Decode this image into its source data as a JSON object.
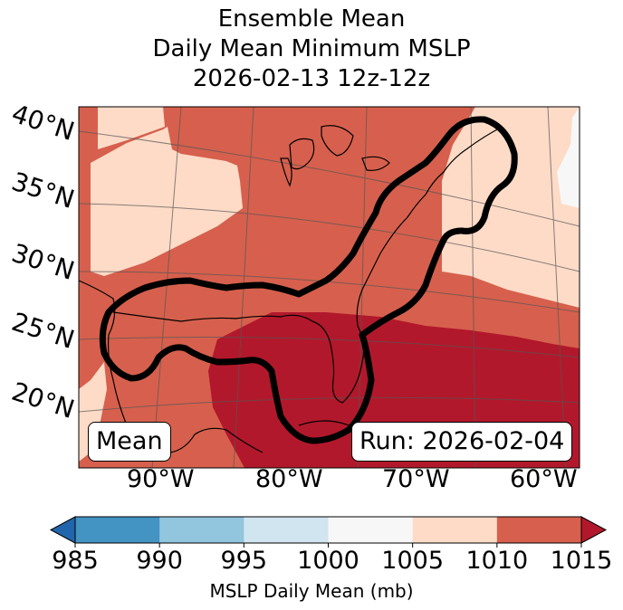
{
  "title": {
    "line1": "Ensemble Mean",
    "line2": "Daily Mean Minimum MSLP",
    "line3": "2026-02-13 12z-12z"
  },
  "map": {
    "lat_labels": [
      "40°N",
      "35°N",
      "30°N",
      "25°N",
      "20°N"
    ],
    "lon_labels": [
      "90°W",
      "80°W",
      "70°W",
      "60°W"
    ],
    "mean_label": "Mean",
    "run_label": "Run: 2026-02-04",
    "region_fill": {
      "1005-1010": "#fddbc7",
      "1010-1015": "#d6604d",
      ">1015": "#b2182b",
      "1000-1005": "#f7f7f7"
    }
  },
  "colorbar": {
    "title": "MSLP Daily Mean (mb)",
    "ticks": [
      "985",
      "990",
      "995",
      "1000",
      "1005",
      "1010",
      "1015"
    ],
    "colors": [
      "#4393c3",
      "#92c5de",
      "#d1e5f0",
      "#f7f7f7",
      "#fddbc7",
      "#d6604d"
    ],
    "under_color": "#2166ac",
    "over_color": "#b2182b"
  }
}
